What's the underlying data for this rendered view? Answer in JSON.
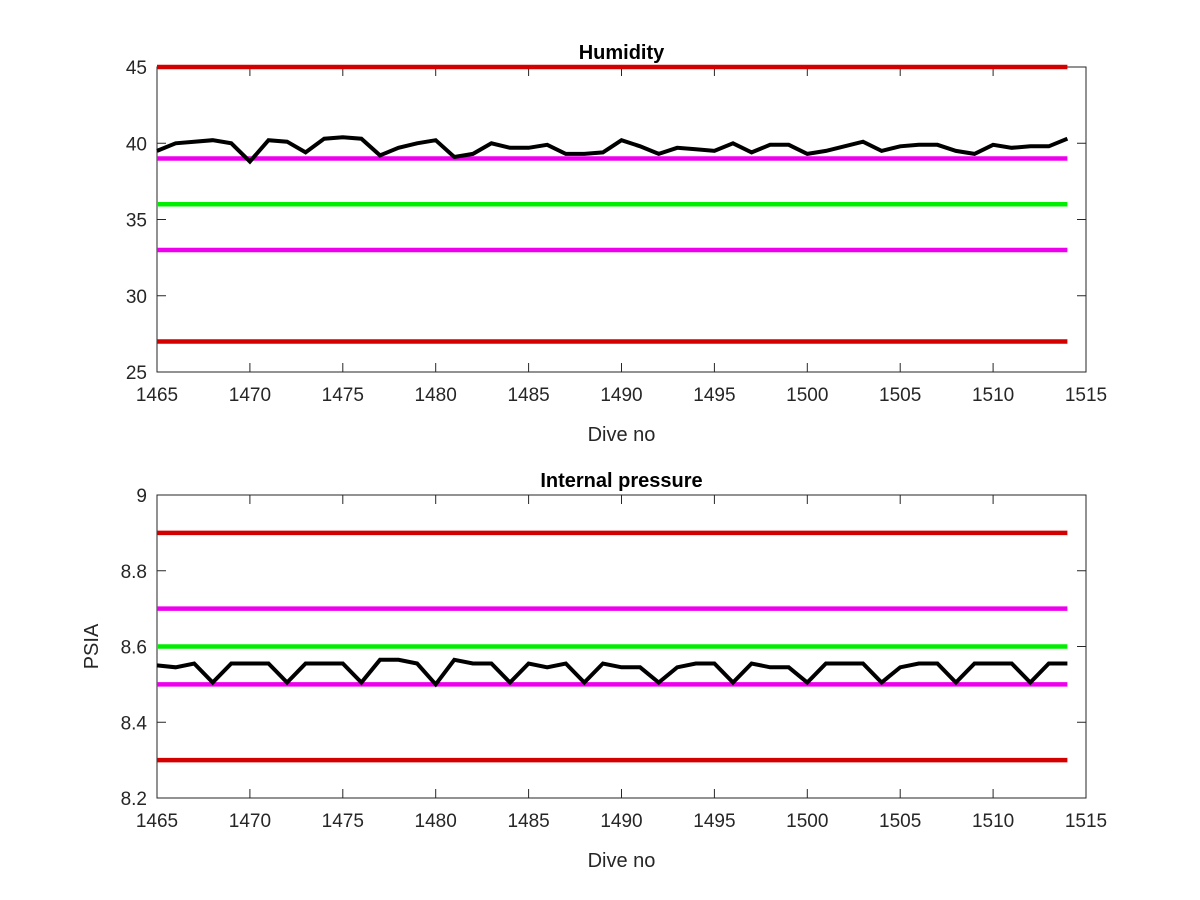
{
  "chart_data": [
    {
      "type": "line",
      "title": "Humidity",
      "xlabel": "Dive no",
      "ylabel": "",
      "xlim": [
        1465,
        1515
      ],
      "ylim": [
        25,
        45
      ],
      "xticks": [
        1465,
        1470,
        1475,
        1480,
        1485,
        1490,
        1495,
        1500,
        1505,
        1510,
        1515
      ],
      "yticks": [
        25,
        30,
        35,
        40,
        45
      ],
      "grid": false,
      "series": [
        {
          "color": "#d40000",
          "x": [
            1465,
            1514
          ],
          "y": [
            45,
            45
          ]
        },
        {
          "color": "#d40000",
          "x": [
            1465,
            1514
          ],
          "y": [
            27,
            27
          ]
        },
        {
          "color": "#ee00ee",
          "x": [
            1465,
            1514
          ],
          "y": [
            39,
            39
          ]
        },
        {
          "color": "#ee00ee",
          "x": [
            1465,
            1514
          ],
          "y": [
            33,
            33
          ]
        },
        {
          "color": "#00ee00",
          "x": [
            1465,
            1514
          ],
          "y": [
            36,
            36
          ]
        },
        {
          "color": "#000000",
          "x": [
            1465,
            1466,
            1467,
            1468,
            1469,
            1470,
            1471,
            1472,
            1473,
            1474,
            1475,
            1476,
            1477,
            1478,
            1479,
            1480,
            1481,
            1482,
            1483,
            1484,
            1485,
            1486,
            1487,
            1488,
            1489,
            1490,
            1491,
            1492,
            1493,
            1494,
            1495,
            1496,
            1497,
            1498,
            1499,
            1500,
            1501,
            1502,
            1503,
            1504,
            1505,
            1506,
            1507,
            1508,
            1509,
            1510,
            1511,
            1512,
            1513,
            1514
          ],
          "y": [
            39.5,
            40.0,
            40.1,
            40.2,
            40.0,
            38.8,
            40.2,
            40.1,
            39.4,
            40.3,
            40.4,
            40.3,
            39.2,
            39.7,
            40.0,
            40.2,
            39.1,
            39.3,
            40.0,
            39.7,
            39.7,
            39.9,
            39.3,
            39.3,
            39.4,
            40.2,
            39.8,
            39.3,
            39.7,
            39.6,
            39.5,
            40.0,
            39.4,
            39.9,
            39.9,
            39.3,
            39.5,
            39.8,
            40.1,
            39.5,
            39.8,
            39.9,
            39.9,
            39.5,
            39.3,
            39.9,
            39.7,
            39.8,
            39.8,
            40.3
          ]
        }
      ]
    },
    {
      "type": "line",
      "title": "Internal pressure",
      "xlabel": "Dive no",
      "ylabel": "PSIA",
      "xlim": [
        1465,
        1515
      ],
      "ylim": [
        8.2,
        9
      ],
      "xticks": [
        1465,
        1470,
        1475,
        1480,
        1485,
        1490,
        1495,
        1500,
        1505,
        1510,
        1515
      ],
      "yticks": [
        8.2,
        8.4,
        8.6,
        8.8,
        9
      ],
      "grid": false,
      "series": [
        {
          "color": "#d40000",
          "x": [
            1465,
            1514
          ],
          "y": [
            8.9,
            8.9
          ]
        },
        {
          "color": "#d40000",
          "x": [
            1465,
            1514
          ],
          "y": [
            8.3,
            8.3
          ]
        },
        {
          "color": "#ee00ee",
          "x": [
            1465,
            1514
          ],
          "y": [
            8.7,
            8.7
          ]
        },
        {
          "color": "#ee00ee",
          "x": [
            1465,
            1514
          ],
          "y": [
            8.5,
            8.5
          ]
        },
        {
          "color": "#00ee00",
          "x": [
            1465,
            1514
          ],
          "y": [
            8.6,
            8.6
          ]
        },
        {
          "color": "#000000",
          "x": [
            1465,
            1466,
            1467,
            1468,
            1469,
            1470,
            1471,
            1472,
            1473,
            1474,
            1475,
            1476,
            1477,
            1478,
            1479,
            1480,
            1481,
            1482,
            1483,
            1484,
            1485,
            1486,
            1487,
            1488,
            1489,
            1490,
            1491,
            1492,
            1493,
            1494,
            1495,
            1496,
            1497,
            1498,
            1499,
            1500,
            1501,
            1502,
            1503,
            1504,
            1505,
            1506,
            1507,
            1508,
            1509,
            1510,
            1511,
            1512,
            1513,
            1514
          ],
          "y": [
            8.55,
            8.545,
            8.555,
            8.505,
            8.555,
            8.555,
            8.555,
            8.505,
            8.555,
            8.555,
            8.555,
            8.505,
            8.565,
            8.565,
            8.555,
            8.5,
            8.565,
            8.555,
            8.555,
            8.505,
            8.555,
            8.545,
            8.555,
            8.505,
            8.555,
            8.545,
            8.545,
            8.505,
            8.545,
            8.555,
            8.555,
            8.505,
            8.555,
            8.545,
            8.545,
            8.505,
            8.555,
            8.555,
            8.555,
            8.505,
            8.545,
            8.555,
            8.555,
            8.505,
            8.555,
            8.555,
            8.555,
            8.505,
            8.555,
            8.555
          ]
        }
      ]
    }
  ]
}
